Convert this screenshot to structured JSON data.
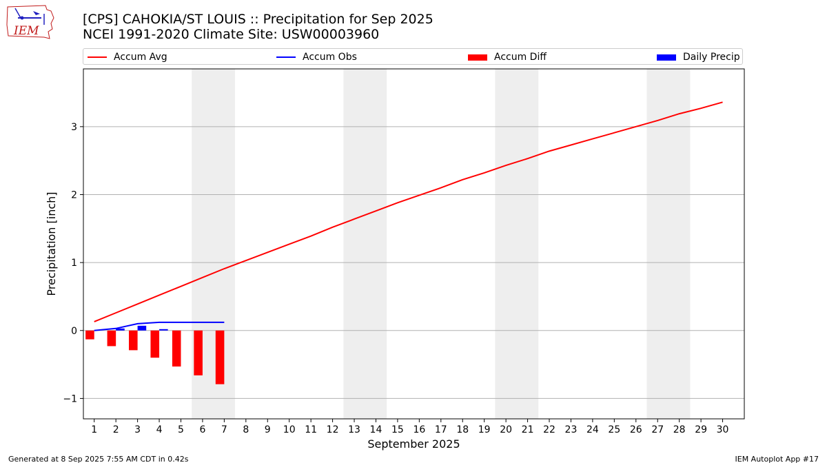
{
  "titles": {
    "line1": "[CPS] CAHOKIA/ST LOUIS :: Precipitation for Sep 2025",
    "line2": "NCEI 1991-2020 Climate Site: USW00003960"
  },
  "logo": {
    "icon": "iem-iowa-logo-icon",
    "text": "IEM"
  },
  "legend": [
    {
      "label": "Accum Avg",
      "kind": "line",
      "color": "#ff0000"
    },
    {
      "label": "Accum Obs",
      "kind": "line",
      "color": "#0000ff"
    },
    {
      "label": "Accum Diff",
      "kind": "box",
      "color": "#ff0000"
    },
    {
      "label": "Daily Precip",
      "kind": "box",
      "color": "#0000ff"
    }
  ],
  "chart_data": {
    "type": "line",
    "xlabel": "September 2025",
    "ylabel": "Precipitation [inch]",
    "xlim": [
      0.5,
      31
    ],
    "ylim": [
      -1.3,
      3.85
    ],
    "x_ticks": [
      1,
      2,
      3,
      4,
      5,
      6,
      7,
      8,
      9,
      10,
      11,
      12,
      13,
      14,
      15,
      16,
      17,
      18,
      19,
      20,
      21,
      22,
      23,
      24,
      25,
      26,
      27,
      28,
      29,
      30
    ],
    "y_ticks": [
      -1,
      0,
      1,
      2,
      3
    ],
    "y_tick_labels": [
      "−1",
      "0",
      "1",
      "2",
      "3"
    ],
    "grid": "horizontal",
    "weekend_shading": [
      [
        5.5,
        7.5
      ],
      [
        12.5,
        14.5
      ],
      [
        19.5,
        21.5
      ],
      [
        26.5,
        28.5
      ]
    ],
    "accum_avg": {
      "name": "Accum Avg",
      "color": "#ff0000",
      "x": [
        1,
        2,
        3,
        4,
        5,
        6,
        7,
        8,
        9,
        10,
        11,
        12,
        13,
        14,
        15,
        16,
        17,
        18,
        19,
        20,
        21,
        22,
        23,
        24,
        25,
        26,
        27,
        28,
        29,
        30
      ],
      "y": [
        0.13,
        0.26,
        0.39,
        0.52,
        0.65,
        0.78,
        0.91,
        1.03,
        1.15,
        1.27,
        1.39,
        1.52,
        1.64,
        1.76,
        1.88,
        1.99,
        2.1,
        2.22,
        2.32,
        2.43,
        2.53,
        2.64,
        2.73,
        2.82,
        2.91,
        3.0,
        3.09,
        3.19,
        3.27,
        3.36
      ]
    },
    "accum_obs": {
      "name": "Accum Obs",
      "color": "#0000ff",
      "x": [
        1,
        2,
        3,
        4,
        5,
        6,
        7
      ],
      "y": [
        0.0,
        0.03,
        0.1,
        0.12,
        0.12,
        0.12,
        0.12
      ]
    },
    "accum_diff": {
      "name": "Accum Diff",
      "color": "#ff0000",
      "x": [
        1,
        2,
        3,
        4,
        5,
        6,
        7
      ],
      "y": [
        -0.13,
        -0.23,
        -0.29,
        -0.4,
        -0.53,
        -0.66,
        -0.79
      ]
    },
    "daily_precip": {
      "name": "Daily Precip",
      "color": "#0000ff",
      "x": [
        1,
        2,
        3,
        4,
        5,
        6,
        7
      ],
      "y": [
        0.0,
        0.03,
        0.07,
        0.02,
        0.0,
        0.0,
        0.0
      ]
    }
  },
  "footer": {
    "left": "Generated at 8 Sep 2025 7:55 AM CDT in 0.42s",
    "right": "IEM Autoplot App #17"
  }
}
